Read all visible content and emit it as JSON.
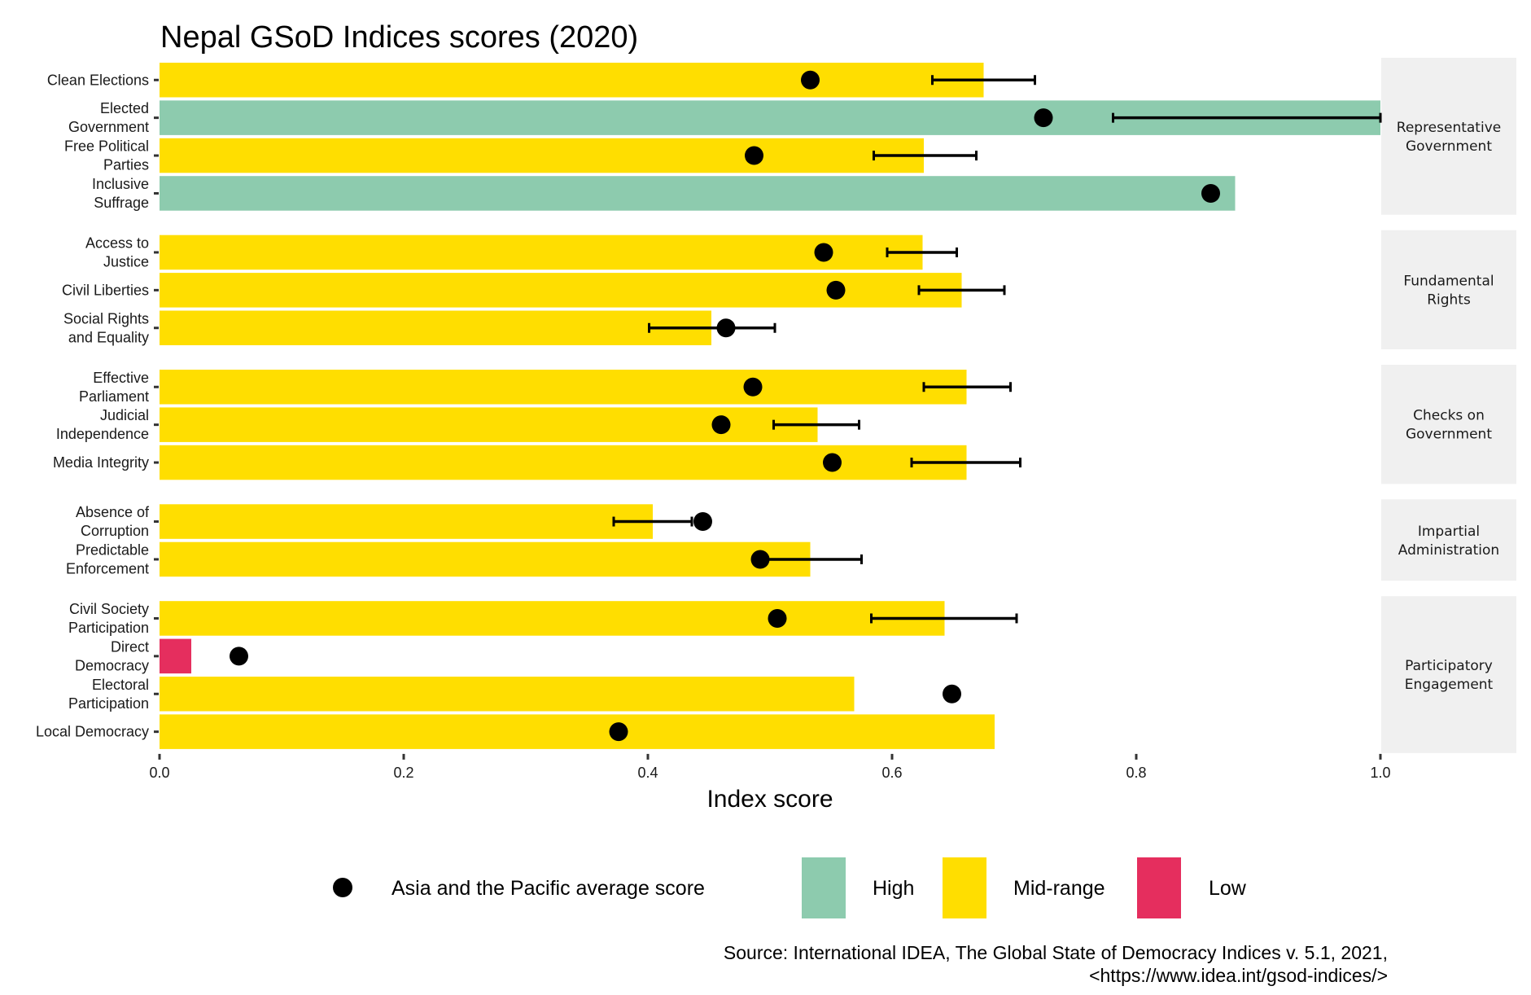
{
  "chart_data": {
    "type": "bar",
    "orientation": "horizontal",
    "title": "Nepal GSoD Indices scores (2020)",
    "xlabel": "Index score",
    "ylabel": "",
    "xlim": [
      0,
      1
    ],
    "x_ticks": [
      "0.0",
      "0.2",
      "0.4",
      "0.6",
      "0.8",
      "1.0"
    ],
    "x_tick_values": [
      0,
      0.2,
      0.4,
      0.6,
      0.8,
      1.0
    ],
    "grid": false,
    "facets": [
      {
        "name": "Representative Government",
        "label_lines": [
          "Representative",
          "Government"
        ],
        "items": [
          {
            "label": "Clean Elections",
            "label_lines": [
              "Clean Elections"
            ],
            "value": 0.675,
            "category": "Mid-range",
            "ci": [
              0.633,
              0.717
            ],
            "avg": 0.533
          },
          {
            "label": "Elected Government",
            "label_lines": [
              "Elected",
              "Government"
            ],
            "value": 1.0,
            "category": "High",
            "ci": [
              0.781,
              1.0
            ],
            "avg": 0.724
          },
          {
            "label": "Free Political Parties",
            "label_lines": [
              "Free Political",
              "Parties"
            ],
            "value": 0.626,
            "category": "Mid-range",
            "ci": [
              0.585,
              0.669
            ],
            "avg": 0.487
          },
          {
            "label": "Inclusive Suffrage",
            "label_lines": [
              "Inclusive",
              "Suffrage"
            ],
            "value": 0.881,
            "category": "High",
            "ci": null,
            "avg": 0.861
          }
        ]
      },
      {
        "name": "Fundamental Rights",
        "label_lines": [
          "Fundamental",
          "Rights"
        ],
        "items": [
          {
            "label": "Access to Justice",
            "label_lines": [
              "Access to",
              "Justice"
            ],
            "value": 0.625,
            "category": "Mid-range",
            "ci": [
              0.596,
              0.653
            ],
            "avg": 0.544
          },
          {
            "label": "Civil Liberties",
            "label_lines": [
              "Civil Liberties"
            ],
            "value": 0.657,
            "category": "Mid-range",
            "ci": [
              0.622,
              0.692
            ],
            "avg": 0.554
          },
          {
            "label": "Social Rights and Equality",
            "label_lines": [
              "Social Rights",
              "and Equality"
            ],
            "value": 0.452,
            "category": "Mid-range",
            "ci": [
              0.401,
              0.504
            ],
            "avg": 0.464
          }
        ]
      },
      {
        "name": "Checks on Government",
        "label_lines": [
          "Checks on",
          "Government"
        ],
        "items": [
          {
            "label": "Effective Parliament",
            "label_lines": [
              "Effective",
              "Parliament"
            ],
            "value": 0.661,
            "category": "Mid-range",
            "ci": [
              0.626,
              0.697
            ],
            "avg": 0.486
          },
          {
            "label": "Judicial Independence",
            "label_lines": [
              "Judicial",
              "Independence"
            ],
            "value": 0.539,
            "category": "Mid-range",
            "ci": [
              0.503,
              0.573
            ],
            "avg": 0.46
          },
          {
            "label": "Media Integrity",
            "label_lines": [
              "Media Integrity"
            ],
            "value": 0.661,
            "category": "Mid-range",
            "ci": [
              0.616,
              0.705
            ],
            "avg": 0.551
          }
        ]
      },
      {
        "name": "Impartial Administration",
        "label_lines": [
          "Impartial",
          "Administration"
        ],
        "items": [
          {
            "label": "Absence of Corruption",
            "label_lines": [
              "Absence of",
              "Corruption"
            ],
            "value": 0.404,
            "category": "Mid-range",
            "ci": [
              0.372,
              0.436
            ],
            "avg": 0.445
          },
          {
            "label": "Predictable Enforcement",
            "label_lines": [
              "Predictable",
              "Enforcement"
            ],
            "value": 0.533,
            "category": "Mid-range",
            "ci": [
              0.492,
              0.575
            ],
            "avg": 0.492
          }
        ]
      },
      {
        "name": "Participatory Engagement",
        "label_lines": [
          "Participatory",
          "Engagement"
        ],
        "items": [
          {
            "label": "Civil Society Participation",
            "label_lines": [
              "Civil Society",
              "Participation"
            ],
            "value": 0.643,
            "category": "Mid-range",
            "ci": [
              0.583,
              0.702
            ],
            "avg": 0.506
          },
          {
            "label": "Direct Democracy",
            "label_lines": [
              "Direct",
              "Democracy"
            ],
            "value": 0.026,
            "category": "Low",
            "ci": null,
            "avg": 0.065
          },
          {
            "label": "Electoral Participation",
            "label_lines": [
              "Electoral",
              "Participation"
            ],
            "value": 0.569,
            "category": "Mid-range",
            "ci": null,
            "avg": 0.649
          },
          {
            "label": "Local Democracy",
            "label_lines": [
              "Local Democracy"
            ],
            "value": 0.684,
            "category": "Mid-range",
            "ci": null,
            "avg": 0.376
          }
        ]
      }
    ],
    "legend": {
      "position": "bottom",
      "point_label": "Asia and the Pacific average score",
      "categories": [
        {
          "name": "High",
          "color": "#8dcbae"
        },
        {
          "name": "Mid-range",
          "color": "#ffde00"
        },
        {
          "name": "Low",
          "color": "#e52e5e"
        }
      ]
    },
    "caption_lines": [
      "Source: International IDEA, The Global State of Democracy Indices v. 5.1, 2021,",
      "<https://www.idea.int/gsod-indices/>"
    ]
  },
  "colors": {
    "High": "#8dcbae",
    "Mid-range": "#ffde00",
    "Low": "#e52e5e",
    "strip_bg": "#f0f0f0",
    "point": "#000000"
  }
}
